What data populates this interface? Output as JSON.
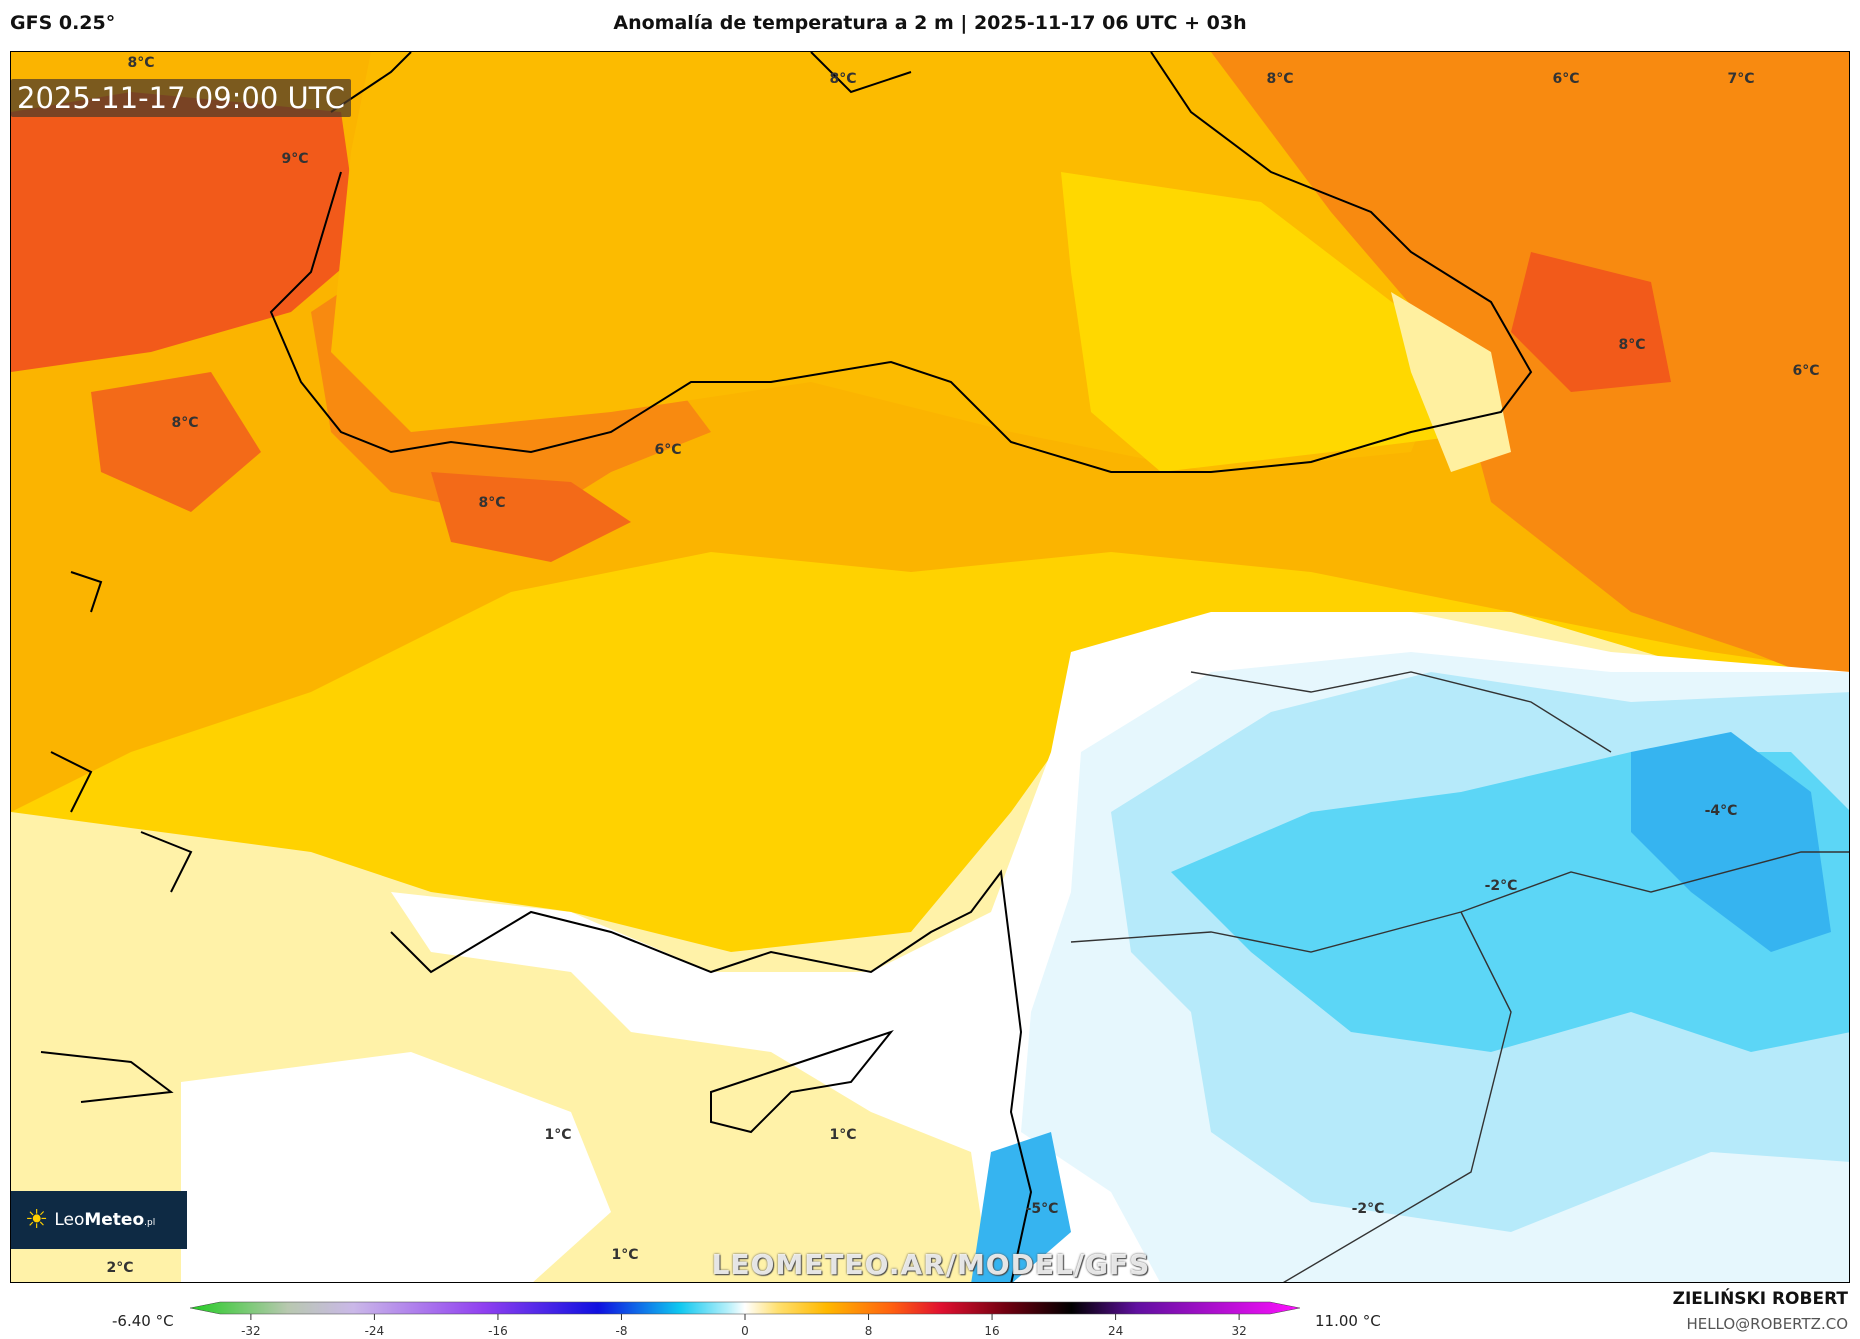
{
  "header": {
    "model": "GFS 0.25°",
    "title": "Anomalía de temperatura a 2 m | 2025-11-17 06 UTC + 03h"
  },
  "map": {
    "valid_time": "2025-11-17 09:00 UTC",
    "labels": [
      {
        "text": "8°C"
      },
      {
        "text": "9°C"
      },
      {
        "text": "8°C"
      },
      {
        "text": "8°C"
      },
      {
        "text": "6°C"
      },
      {
        "text": "7°C"
      },
      {
        "text": "8°C"
      },
      {
        "text": "6°C"
      },
      {
        "text": "8°C"
      },
      {
        "text": "8°C"
      },
      {
        "text": "6°C"
      },
      {
        "text": "-4°C"
      },
      {
        "text": "-2°C"
      },
      {
        "text": "1°C"
      },
      {
        "text": "1°C"
      },
      {
        "text": "-5°C"
      },
      {
        "text": "-2°C"
      },
      {
        "text": "2°C"
      },
      {
        "text": "1°C"
      }
    ],
    "logo": {
      "text_a": "Leo",
      "text_b": "Meteo",
      "suffix": ".pl"
    },
    "watermark": "LEOMETEO.AR/MODEL/GFS"
  },
  "colorbar": {
    "min_label": "-6.40 °C",
    "max_label": "11.00 °C",
    "range": [
      -34,
      34
    ],
    "ticks": [
      -32,
      -24,
      -16,
      -8,
      0,
      8,
      16,
      24,
      32
    ],
    "stops": [
      {
        "v": -34,
        "c": "#22cc22"
      },
      {
        "v": -28,
        "c": "#b8c8b0"
      },
      {
        "v": -24,
        "c": "#cab8e8"
      },
      {
        "v": -16,
        "c": "#9040f0"
      },
      {
        "v": -9,
        "c": "#1010e0"
      },
      {
        "v": -4,
        "c": "#10c8f0"
      },
      {
        "v": -1,
        "c": "#b8f0fa"
      },
      {
        "v": 0,
        "c": "#ffffff"
      },
      {
        "v": 2,
        "c": "#ffe070"
      },
      {
        "v": 5,
        "c": "#ffb800"
      },
      {
        "v": 9,
        "c": "#ff6010"
      },
      {
        "v": 12,
        "c": "#e01030"
      },
      {
        "v": 16,
        "c": "#700010"
      },
      {
        "v": 20,
        "c": "#000000"
      },
      {
        "v": 24,
        "c": "#6010a0"
      },
      {
        "v": 34,
        "c": "#ff10ff"
      }
    ]
  },
  "footer": {
    "author": "ZIELIŃSKI ROBERT",
    "email": "HELLO@ROBERTZ.CO"
  }
}
